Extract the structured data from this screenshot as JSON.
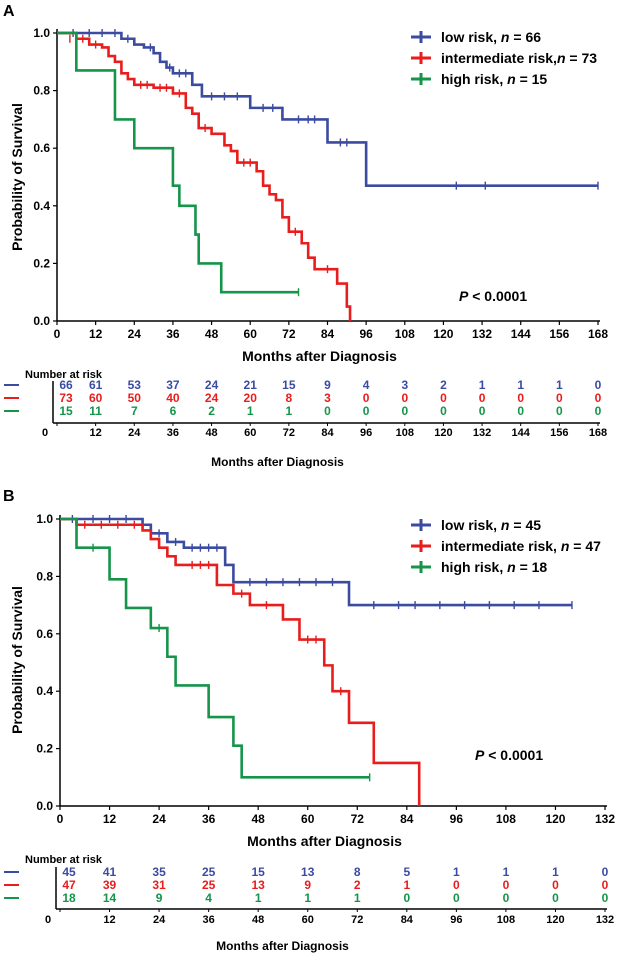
{
  "colors": {
    "low": "#3b4ba0",
    "intermediate": "#e81d1d",
    "high": "#15944a",
    "axis": "#000000"
  },
  "chart_data": [
    {
      "type": "line",
      "panel": "A",
      "ylabel": "Probability of Survival",
      "xlabel": "Months after Diagnosis",
      "xlim": [
        0,
        168
      ],
      "ylim": [
        0,
        1.0
      ],
      "xticks": [
        "0",
        "12",
        "24",
        "36",
        "48",
        "60",
        "72",
        "84",
        "96",
        "108",
        "120",
        "132",
        "144",
        "156",
        "168"
      ],
      "yticks": [
        "0.0",
        "0.2",
        "0.4",
        "0.6",
        "0.8",
        "1.0"
      ],
      "p_value_italic": "P",
      "p_value_rest": " < 0.0001",
      "legend": [
        {
          "key": "low",
          "prefix": "low risk, ",
          "n_label": "n",
          "n_value": " = 66"
        },
        {
          "key": "intermediate",
          "prefix": "intermediate risk,",
          "n_label": "n",
          "n_value": " = 73"
        },
        {
          "key": "high",
          "prefix": "high risk, ",
          "n_label": "n",
          "n_value": " = 15"
        }
      ],
      "series": [
        {
          "name": "low risk",
          "key": "low",
          "steps": [
            [
              0,
              1.0
            ],
            [
              20,
              0.98
            ],
            [
              24,
              0.96
            ],
            [
              27,
              0.95
            ],
            [
              30,
              0.93
            ],
            [
              32,
              0.9
            ],
            [
              34,
              0.88
            ],
            [
              36,
              0.86
            ],
            [
              42,
              0.82
            ],
            [
              45,
              0.78
            ],
            [
              60,
              0.74
            ],
            [
              70,
              0.7
            ],
            [
              84,
              0.62
            ],
            [
              96,
              0.47
            ],
            [
              168,
              0.47
            ]
          ],
          "censor": [
            [
              5,
              1.0
            ],
            [
              10,
              1.0
            ],
            [
              14,
              1.0
            ],
            [
              18,
              1.0
            ],
            [
              22,
              0.98
            ],
            [
              29,
              0.95
            ],
            [
              35,
              0.88
            ],
            [
              38,
              0.86
            ],
            [
              40,
              0.86
            ],
            [
              48,
              0.78
            ],
            [
              52,
              0.78
            ],
            [
              56,
              0.78
            ],
            [
              64,
              0.74
            ],
            [
              67,
              0.74
            ],
            [
              75,
              0.7
            ],
            [
              78,
              0.7
            ],
            [
              80,
              0.7
            ],
            [
              88,
              0.62
            ],
            [
              90,
              0.62
            ],
            [
              124,
              0.47
            ],
            [
              133,
              0.47
            ],
            [
              168,
              0.47
            ]
          ]
        },
        {
          "name": "intermediate risk",
          "key": "intermediate",
          "steps": [
            [
              0,
              1.0
            ],
            [
              6,
              0.98
            ],
            [
              10,
              0.96
            ],
            [
              14,
              0.95
            ],
            [
              16,
              0.92
            ],
            [
              18,
              0.9
            ],
            [
              20,
              0.86
            ],
            [
              22,
              0.84
            ],
            [
              24,
              0.82
            ],
            [
              30,
              0.81
            ],
            [
              36,
              0.79
            ],
            [
              40,
              0.74
            ],
            [
              42,
              0.72
            ],
            [
              44,
              0.67
            ],
            [
              48,
              0.65
            ],
            [
              52,
              0.61
            ],
            [
              54,
              0.59
            ],
            [
              56,
              0.55
            ],
            [
              62,
              0.52
            ],
            [
              64,
              0.47
            ],
            [
              66,
              0.44
            ],
            [
              68,
              0.42
            ],
            [
              70,
              0.36
            ],
            [
              72,
              0.31
            ],
            [
              76,
              0.27
            ],
            [
              78,
              0.22
            ],
            [
              80,
              0.18
            ],
            [
              87,
              0.13
            ],
            [
              90,
              0.05
            ],
            [
              91,
              0.0
            ]
          ],
          "censor": [
            [
              4,
              0.98
            ],
            [
              8,
              0.98
            ],
            [
              12,
              0.96
            ],
            [
              26,
              0.82
            ],
            [
              28,
              0.82
            ],
            [
              32,
              0.81
            ],
            [
              34,
              0.81
            ],
            [
              38,
              0.79
            ],
            [
              46,
              0.67
            ],
            [
              58,
              0.55
            ],
            [
              60,
              0.55
            ],
            [
              74,
              0.31
            ],
            [
              84,
              0.18
            ]
          ]
        },
        {
          "name": "high risk",
          "key": "high",
          "steps": [
            [
              0,
              1.0
            ],
            [
              6,
              0.87
            ],
            [
              18,
              0.7
            ],
            [
              24,
              0.6
            ],
            [
              36,
              0.47
            ],
            [
              38,
              0.4
            ],
            [
              43,
              0.3
            ],
            [
              44,
              0.2
            ],
            [
              51,
              0.1
            ],
            [
              75,
              0.1
            ]
          ],
          "censor": [
            [
              75,
              0.1
            ]
          ]
        }
      ],
      "risk_table": {
        "title": "Number at risk",
        "xticks": [
          "0",
          "12",
          "24",
          "36",
          "48",
          "60",
          "72",
          "84",
          "96",
          "108",
          "120",
          "132",
          "144",
          "156",
          "168"
        ],
        "xlabel": "Months after Diagnosis",
        "rows": [
          {
            "key": "low",
            "values": [
              "66",
              "61",
              "53",
              "37",
              "24",
              "21",
              "15",
              "9",
              "4",
              "3",
              "2",
              "1",
              "1",
              "1",
              "0"
            ]
          },
          {
            "key": "intermediate",
            "values": [
              "73",
              "60",
              "50",
              "40",
              "24",
              "20",
              "8",
              "3",
              "0",
              "0",
              "0",
              "0",
              "0",
              "0",
              "0"
            ]
          },
          {
            "key": "high",
            "values": [
              "15",
              "11",
              "7",
              "6",
              "2",
              "1",
              "1",
              "0",
              "0",
              "0",
              "0",
              "0",
              "0",
              "0",
              "0"
            ]
          }
        ]
      }
    },
    {
      "type": "line",
      "panel": "B",
      "ylabel": "Probability of Survival",
      "xlabel": "Months after Diagnosis",
      "xlim": [
        0,
        132
      ],
      "ylim": [
        0,
        1.0
      ],
      "xticks": [
        "0",
        "12",
        "24",
        "36",
        "48",
        "60",
        "72",
        "84",
        "96",
        "108",
        "120",
        "132"
      ],
      "yticks": [
        "0.0",
        "0.2",
        "0.4",
        "0.6",
        "0.8",
        "1.0"
      ],
      "p_value_italic": "P",
      "p_value_rest": " < 0.0001",
      "legend": [
        {
          "key": "low",
          "prefix": "low risk, ",
          "n_label": "n",
          "n_value": " = 45"
        },
        {
          "key": "intermediate",
          "prefix": "intermediate risk, ",
          "n_label": "n",
          "n_value": " = 47"
        },
        {
          "key": "high",
          "prefix": "high risk, ",
          "n_label": "n",
          "n_value": " = 18"
        }
      ],
      "series": [
        {
          "name": "low risk",
          "key": "low",
          "steps": [
            [
              0,
              1.0
            ],
            [
              20,
              0.98
            ],
            [
              22,
              0.95
            ],
            [
              26,
              0.92
            ],
            [
              30,
              0.9
            ],
            [
              40,
              0.84
            ],
            [
              42,
              0.78
            ],
            [
              70,
              0.7
            ],
            [
              124,
              0.7
            ]
          ],
          "censor": [
            [
              3,
              1.0
            ],
            [
              8,
              1.0
            ],
            [
              12,
              1.0
            ],
            [
              16,
              1.0
            ],
            [
              24,
              0.95
            ],
            [
              28,
              0.92
            ],
            [
              32,
              0.9
            ],
            [
              34,
              0.9
            ],
            [
              36,
              0.9
            ],
            [
              38,
              0.9
            ],
            [
              46,
              0.78
            ],
            [
              50,
              0.78
            ],
            [
              54,
              0.78
            ],
            [
              58,
              0.78
            ],
            [
              62,
              0.78
            ],
            [
              66,
              0.78
            ],
            [
              76,
              0.7
            ],
            [
              82,
              0.7
            ],
            [
              86,
              0.7
            ],
            [
              92,
              0.7
            ],
            [
              98,
              0.7
            ],
            [
              104,
              0.7
            ],
            [
              110,
              0.7
            ],
            [
              116,
              0.7
            ],
            [
              124,
              0.7
            ]
          ]
        },
        {
          "name": "intermediate risk",
          "key": "intermediate",
          "steps": [
            [
              0,
              1.0
            ],
            [
              4,
              0.98
            ],
            [
              20,
              0.96
            ],
            [
              22,
              0.93
            ],
            [
              24,
              0.9
            ],
            [
              26,
              0.87
            ],
            [
              28,
              0.84
            ],
            [
              38,
              0.77
            ],
            [
              42,
              0.74
            ],
            [
              46,
              0.7
            ],
            [
              54,
              0.65
            ],
            [
              58,
              0.58
            ],
            [
              64,
              0.49
            ],
            [
              66,
              0.4
            ],
            [
              70,
              0.29
            ],
            [
              76,
              0.15
            ],
            [
              87,
              0.0
            ]
          ],
          "censor": [
            [
              6,
              0.98
            ],
            [
              10,
              0.98
            ],
            [
              14,
              0.98
            ],
            [
              18,
              0.98
            ],
            [
              32,
              0.84
            ],
            [
              34,
              0.84
            ],
            [
              36,
              0.84
            ],
            [
              44,
              0.74
            ],
            [
              50,
              0.7
            ],
            [
              60,
              0.58
            ],
            [
              62,
              0.58
            ],
            [
              68,
              0.4
            ]
          ]
        },
        {
          "name": "high risk",
          "key": "high",
          "steps": [
            [
              0,
              1.0
            ],
            [
              4,
              0.9
            ],
            [
              12,
              0.79
            ],
            [
              16,
              0.69
            ],
            [
              22,
              0.62
            ],
            [
              26,
              0.52
            ],
            [
              28,
              0.42
            ],
            [
              36,
              0.31
            ],
            [
              42,
              0.21
            ],
            [
              44,
              0.1
            ],
            [
              75,
              0.1
            ]
          ],
          "censor": [
            [
              8,
              0.9
            ],
            [
              24,
              0.62
            ],
            [
              75,
              0.1
            ]
          ]
        }
      ],
      "risk_table": {
        "title": "Number at risk",
        "xticks": [
          "0",
          "12",
          "24",
          "36",
          "48",
          "60",
          "72",
          "84",
          "96",
          "108",
          "120",
          "132"
        ],
        "xlabel": "Months after Diagnosis",
        "rows": [
          {
            "key": "low",
            "values": [
              "45",
              "41",
              "35",
              "25",
              "15",
              "13",
              "8",
              "5",
              "1",
              "1",
              "1",
              "0"
            ]
          },
          {
            "key": "intermediate",
            "values": [
              "47",
              "39",
              "31",
              "25",
              "13",
              "9",
              "2",
              "1",
              "0",
              "0",
              "0",
              "0"
            ]
          },
          {
            "key": "high",
            "values": [
              "18",
              "14",
              "9",
              "4",
              "1",
              "1",
              "1",
              "0",
              "0",
              "0",
              "0",
              "0"
            ]
          }
        ]
      }
    }
  ]
}
